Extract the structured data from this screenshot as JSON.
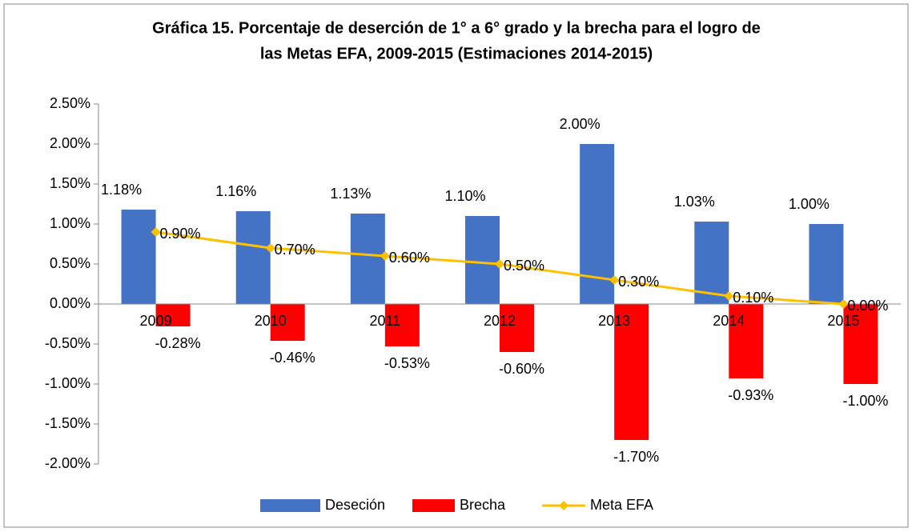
{
  "chart_data": {
    "type": "bar_line",
    "title": [
      "Gráfica 15. Porcentaje de deserción de 1° a 6° grado y la brecha para el logro de",
      "las Metas EFA, 2009-2015 (Estimaciones 2014-2015)"
    ],
    "categories": [
      "2009",
      "2010",
      "2011",
      "2012",
      "2013",
      "2014",
      "2015"
    ],
    "series": [
      {
        "name": "Deseción",
        "color": "#4472c4",
        "kind": "bar",
        "values": [
          1.18,
          1.16,
          1.13,
          1.1,
          2.0,
          1.03,
          1.0
        ],
        "value_labels": [
          "1.18%",
          "1.16%",
          "1.13%",
          "1.10%",
          "2.00%",
          "1.03%",
          "1.00%"
        ]
      },
      {
        "name": "Brecha",
        "color": "#ff0000",
        "kind": "bar",
        "values": [
          -0.28,
          -0.46,
          -0.53,
          -0.6,
          -1.7,
          -0.93,
          -1.0
        ],
        "value_labels": [
          "-0.28%",
          "-0.46%",
          "-0.53%",
          "-0.60%",
          "-1.70%",
          "-0.93%",
          "-1.00%"
        ]
      },
      {
        "name": "Meta EFA",
        "color": "#ffc000",
        "kind": "line",
        "values": [
          0.9,
          0.7,
          0.6,
          0.5,
          0.3,
          0.1,
          0.0
        ],
        "value_labels": [
          "0.90%",
          "0.70%",
          "0.60%",
          "0.50%",
          "0.30%",
          "0.10%",
          "0.00%"
        ]
      }
    ],
    "ylim": [
      -2,
      2.5
    ],
    "yticks": [
      {
        "value": -2,
        "label": "-2.00%"
      },
      {
        "value": -1.5,
        "label": "-1.50%"
      },
      {
        "value": -1,
        "label": "-1.00%"
      },
      {
        "value": -0.5,
        "label": "-0.50%"
      },
      {
        "value": 0,
        "label": "0.00%"
      },
      {
        "value": 0.5,
        "label": "0.50%"
      },
      {
        "value": 1,
        "label": "1.00%"
      },
      {
        "value": 1.5,
        "label": "1.50%"
      },
      {
        "value": 2,
        "label": "2.00%"
      },
      {
        "value": 2.5,
        "label": "2.50%"
      }
    ],
    "grid": false,
    "legend": "bottom"
  }
}
